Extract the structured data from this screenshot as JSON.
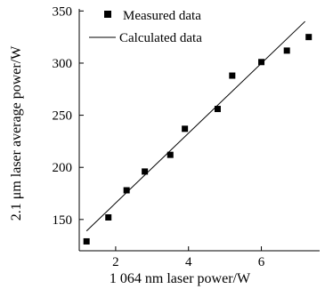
{
  "chart_data": {
    "type": "scatter",
    "xlabel": "1 064 nm  laser power/W",
    "ylabel": "2.1 μm laser average power/W",
    "xlim": [
      1.0,
      7.6
    ],
    "ylim": [
      120,
      352
    ],
    "xticks": [
      2,
      4,
      6
    ],
    "yticks": [
      150,
      200,
      250,
      300,
      350
    ],
    "xtick_labels": [
      "2",
      "4",
      "6"
    ],
    "ytick_labels": [
      "150",
      "200",
      "250",
      "300",
      "350"
    ],
    "legend": {
      "position": "top-left",
      "entries": [
        "Measured data",
        "Calculated data"
      ]
    },
    "series": [
      {
        "name": "Measured data",
        "kind": "scatter",
        "marker": "square",
        "x": [
          1.2,
          1.8,
          2.3,
          2.8,
          3.5,
          3.9,
          4.8,
          5.2,
          6.0,
          6.7,
          7.3
        ],
        "y": [
          129,
          152,
          178,
          196,
          212,
          237,
          256,
          288,
          301,
          312,
          325
        ]
      },
      {
        "name": "Calculated data",
        "kind": "line",
        "x": [
          1.2,
          7.2
        ],
        "y": [
          139,
          340
        ]
      }
    ]
  }
}
